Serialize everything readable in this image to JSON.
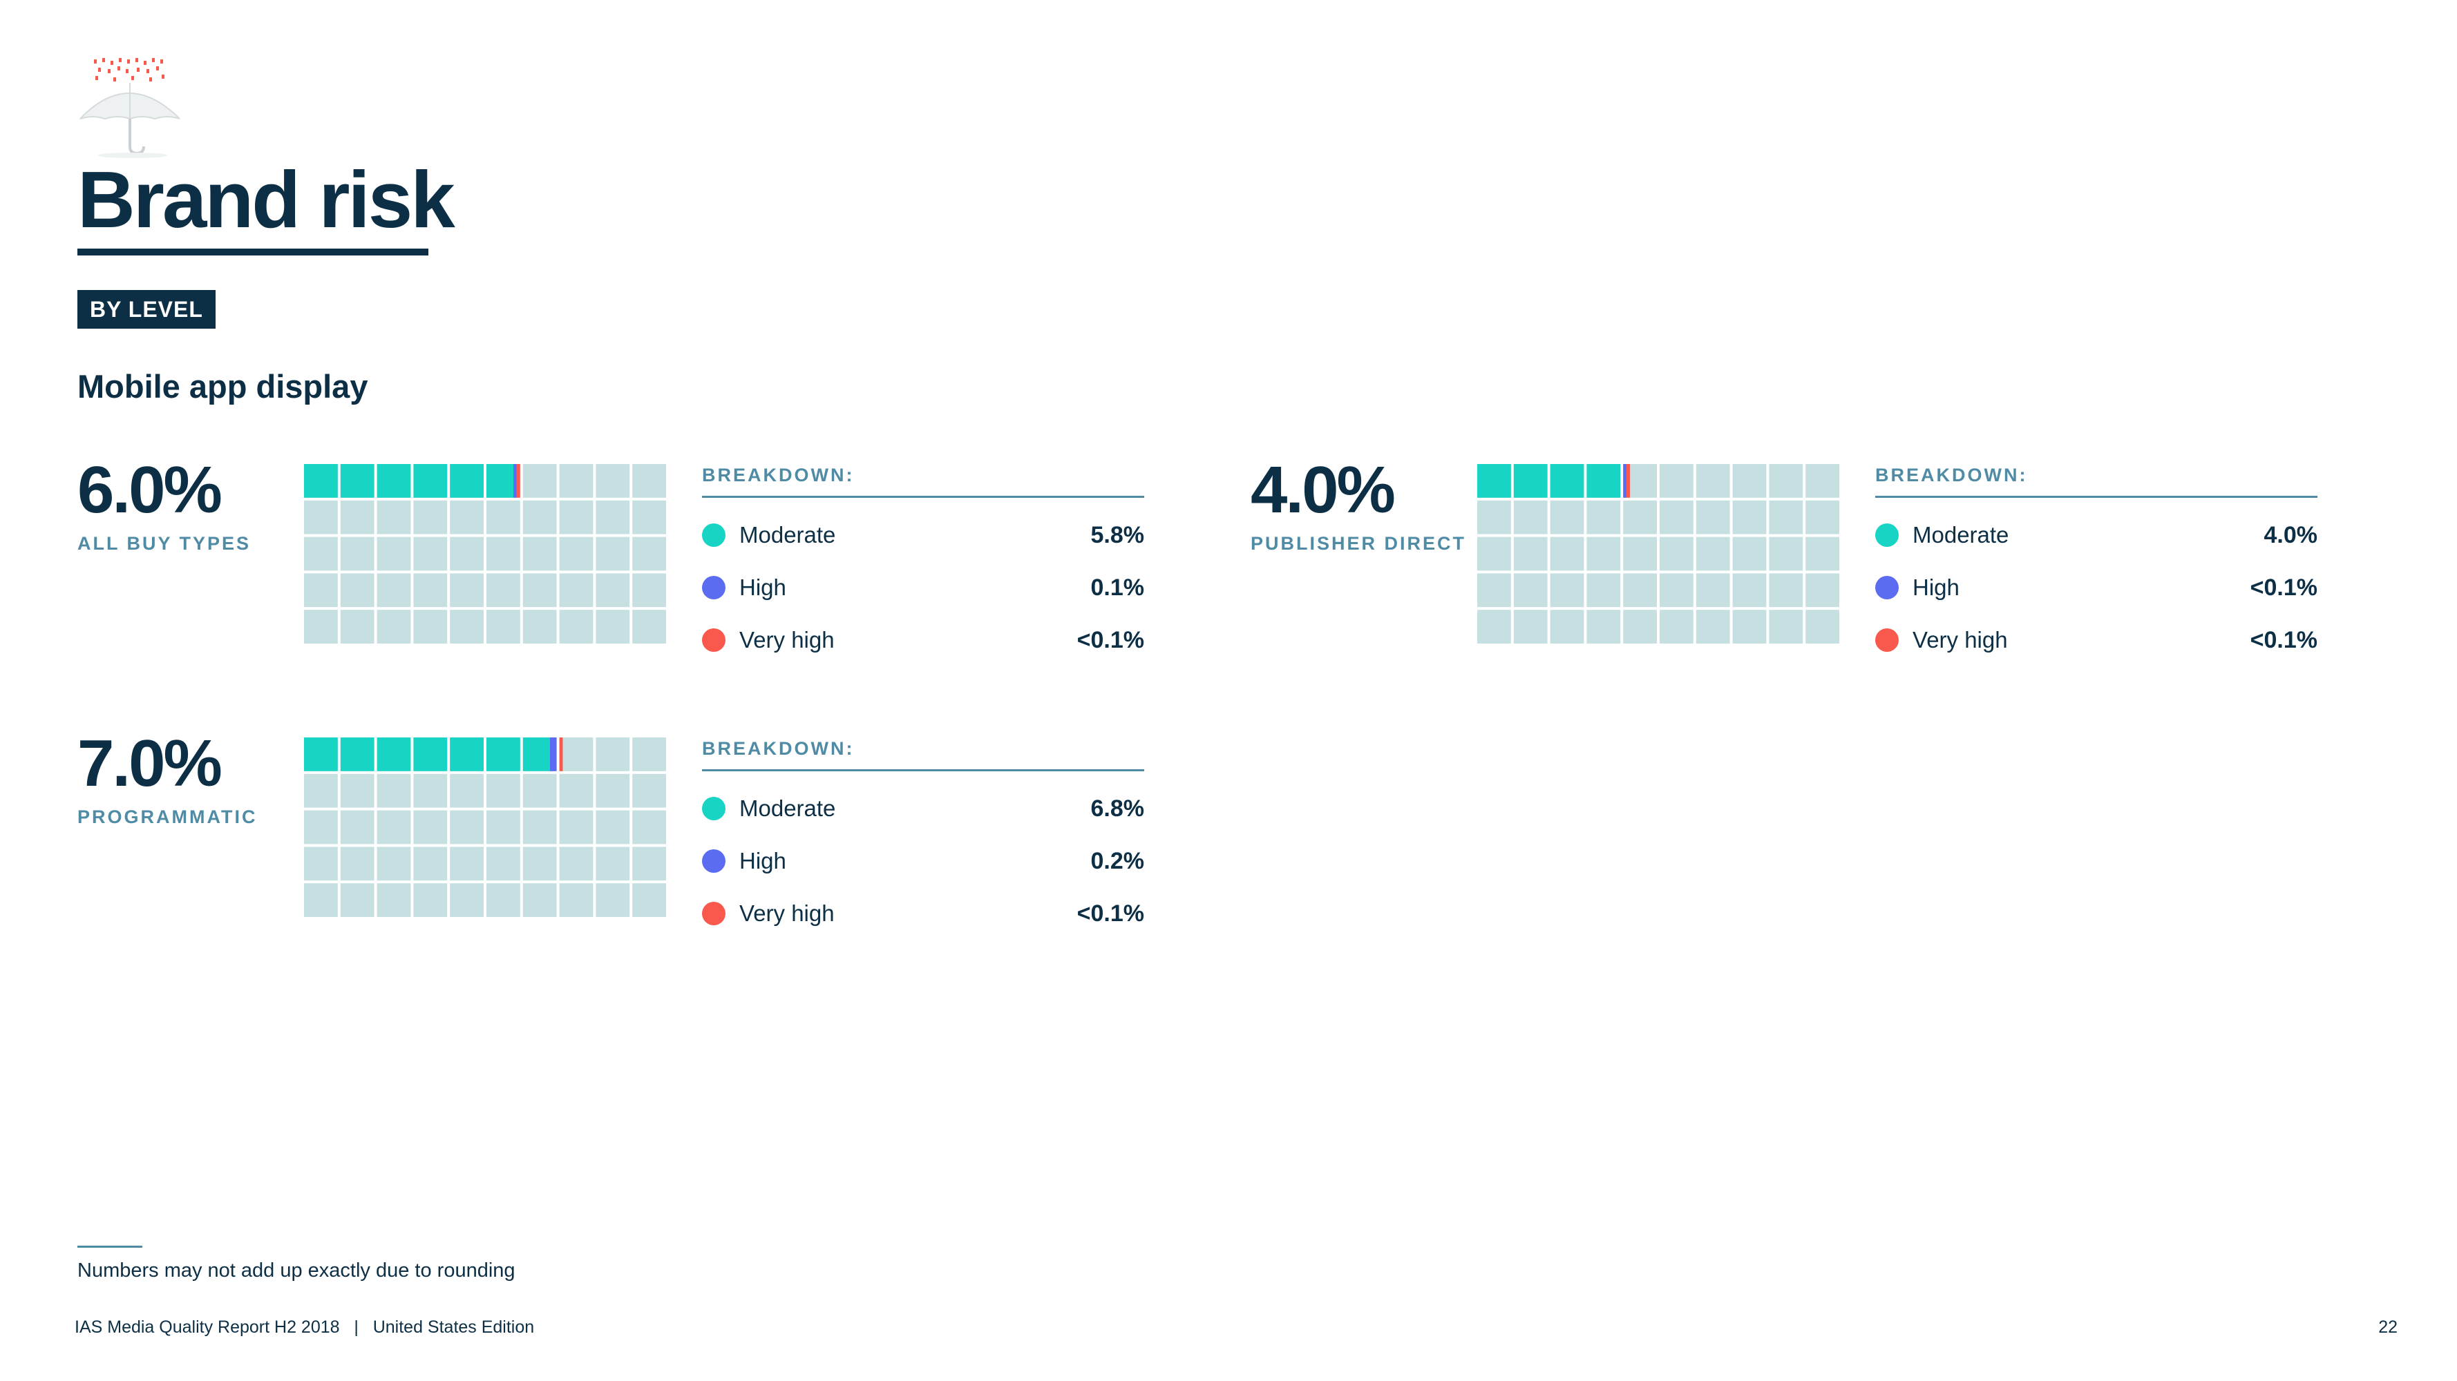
{
  "page": {
    "title": "Brand risk",
    "badge": "BY LEVEL",
    "subtitle": "Mobile app display",
    "footnote": "Numbers may not add up exactly due to rounding",
    "footer_left": "IAS Media Quality Report H2 2018   |   United States Edition",
    "page_number": "22"
  },
  "colors": {
    "moderate": "#17d4c4",
    "high": "#5b6cf0",
    "very_high": "#f9584d",
    "empty_cell": "#c6dfe0",
    "text_dark": "#0d2f45",
    "label_blue": "#4f8ba5"
  },
  "chart_data": [
    {
      "type": "waffle",
      "grid": [
        10,
        5
      ],
      "total": 6.0,
      "value_label": "6.0%",
      "label": "ALL BUY TYPES",
      "breakdown_title": "BREAKDOWN:",
      "series": [
        {
          "name": "Moderate",
          "value": 5.8,
          "display": "5.8%",
          "color_key": "moderate"
        },
        {
          "name": "High",
          "value": 0.1,
          "display": "0.1%",
          "color_key": "high"
        },
        {
          "name": "Very high",
          "value": 0.1,
          "display": "<0.1%",
          "color_key": "very_high"
        }
      ]
    },
    {
      "type": "waffle",
      "grid": [
        10,
        5
      ],
      "total": 4.0,
      "value_label": "4.0%",
      "label": "PUBLISHER DIRECT",
      "breakdown_title": "BREAKDOWN:",
      "series": [
        {
          "name": "Moderate",
          "value": 4.0,
          "display": "4.0%",
          "color_key": "moderate"
        },
        {
          "name": "High",
          "value": 0.1,
          "display": "<0.1%",
          "color_key": "high"
        },
        {
          "name": "Very high",
          "value": 0.1,
          "display": "<0.1%",
          "color_key": "very_high"
        }
      ]
    },
    {
      "type": "waffle",
      "grid": [
        10,
        5
      ],
      "total": 7.0,
      "value_label": "7.0%",
      "label": "PROGRAMMATIC",
      "breakdown_title": "BREAKDOWN:",
      "series": [
        {
          "name": "Moderate",
          "value": 6.8,
          "display": "6.8%",
          "color_key": "moderate"
        },
        {
          "name": "High",
          "value": 0.2,
          "display": "0.2%",
          "color_key": "high"
        },
        {
          "name": "Very high",
          "value": 0.1,
          "display": "<0.1%",
          "color_key": "very_high"
        }
      ]
    }
  ]
}
